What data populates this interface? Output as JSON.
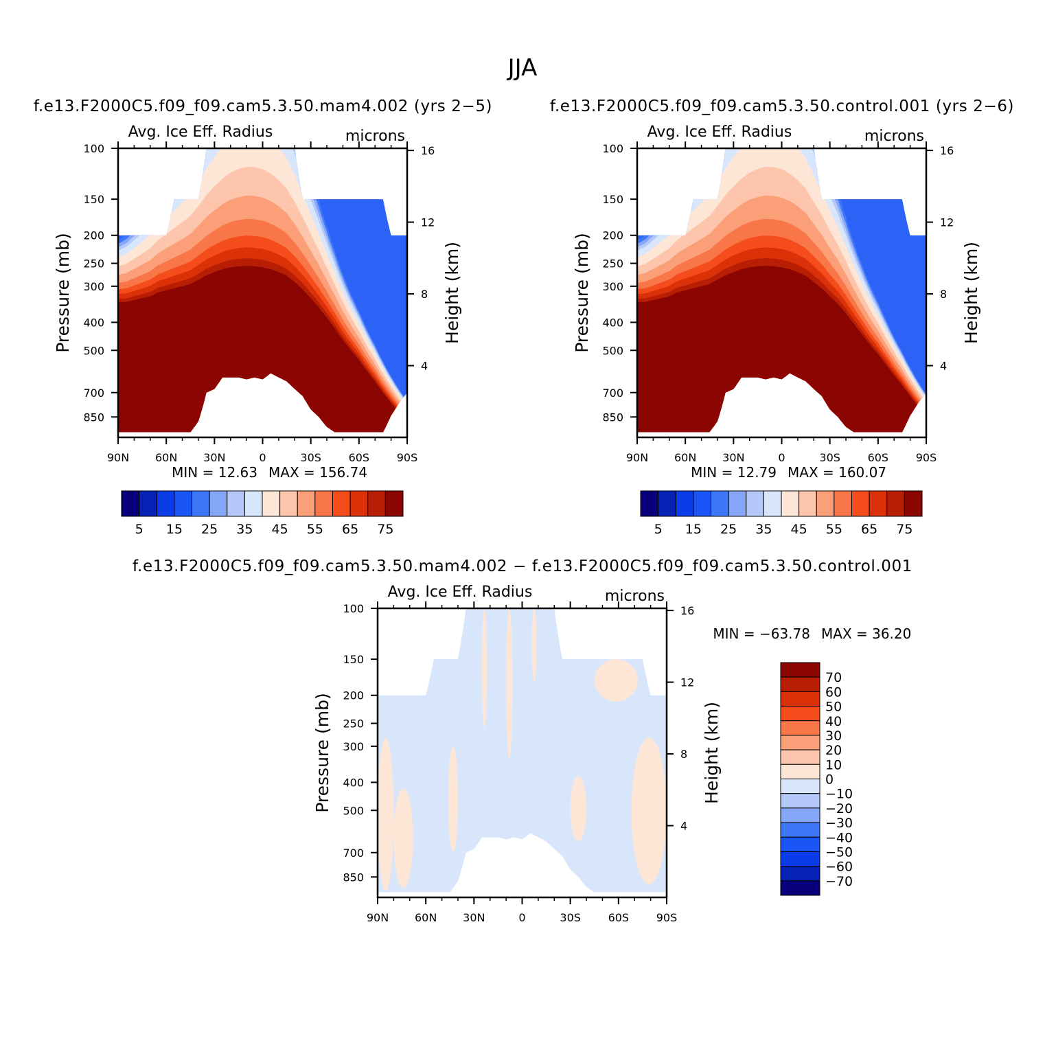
{
  "figure": {
    "season": "JJA"
  },
  "chart_data": [
    {
      "type": "heatmap",
      "id": "case",
      "case_label": "f.e13.F2000C5.f09_f09.cam5.3.50.mam4.002 (yrs 2−5)",
      "title": "Avg. Ice Eff. Radius",
      "units": "microns",
      "ylabel": "Pressure (mb)",
      "ylabel_right": "Height (km)",
      "x_ticks": [
        "90N",
        "60N",
        "30N",
        "0",
        "30S",
        "60S",
        "90S"
      ],
      "y_ticks": [
        "100",
        "150",
        "200",
        "250",
        "300",
        "400",
        "500",
        "700",
        "850"
      ],
      "y_ticks_right": [
        "16",
        "12",
        "8",
        "4"
      ],
      "ylim_mb": [
        100,
        1000
      ],
      "scale": "log-pressure",
      "min_text": "MIN =   12.63",
      "max_text": "MAX =  156.74",
      "min": 12.63,
      "max": 156.74,
      "colorbar": {
        "labels": [
          "5",
          "15",
          "25",
          "35",
          "45",
          "55",
          "65",
          "75"
        ],
        "levels": [
          5,
          10,
          15,
          20,
          25,
          30,
          35,
          40,
          45,
          50,
          55,
          60,
          65,
          70,
          75
        ],
        "colors": [
          "#08007a",
          "#0522b5",
          "#0a3ce8",
          "#1a55f5",
          "#3f77f9",
          "#86a6f8",
          "#b4c9fa",
          "#d8e6fb",
          "#fde6d6",
          "#fdc6ac",
          "#fb9f78",
          "#f97648",
          "#f44d1b",
          "#da3108",
          "#b81e04",
          "#8b0502"
        ]
      },
      "profile_bounds_mb": {
        "lat": [
          90,
          85,
          80,
          75,
          70,
          65,
          60,
          55,
          50,
          45,
          40,
          35,
          30,
          25,
          20,
          15,
          10,
          5,
          0,
          -5,
          -10,
          -15,
          -20,
          -25,
          -30,
          -35,
          -40,
          -45,
          -50,
          -55,
          -60,
          -65,
          -70,
          -75,
          -80,
          -85,
          -90
        ],
        "top": [
          200,
          200,
          200,
          200,
          200,
          200,
          200,
          150,
          150,
          150,
          150,
          100,
          100,
          100,
          100,
          100,
          100,
          100,
          100,
          100,
          100,
          100,
          100,
          150,
          150,
          150,
          150,
          150,
          150,
          150,
          150,
          150,
          150,
          150,
          200,
          200,
          200
        ],
        "bottom": [
          960,
          960,
          960,
          960,
          960,
          960,
          960,
          960,
          960,
          960,
          880,
          700,
          680,
          620,
          620,
          620,
          630,
          620,
          630,
          600,
          620,
          640,
          680,
          720,
          800,
          850,
          920,
          960,
          960,
          960,
          960,
          960,
          960,
          960,
          840,
          760,
          700
        ],
        "core_top": [
          340,
          340,
          335,
          330,
          325,
          315,
          310,
          305,
          300,
          295,
          285,
          275,
          268,
          262,
          258,
          256,
          255,
          256,
          258,
          262,
          268,
          276,
          290,
          308,
          330,
          355,
          385,
          420,
          460,
          500,
          540,
          590,
          640,
          700,
          760,
          820,
          880
        ]
      },
      "color_bands_mb_above_core": [
        {
          "offset_mb": 15,
          "color": "#b81e04"
        },
        {
          "offset_mb": 35,
          "color": "#da3108"
        },
        {
          "offset_mb": 55,
          "color": "#f44d1b"
        },
        {
          "offset_mb": 80,
          "color": "#f97648"
        },
        {
          "offset_mb": 110,
          "color": "#fb9f78"
        },
        {
          "offset_mb": 140,
          "color": "#fdc6ac"
        },
        {
          "offset_mb": 170,
          "color": "#fde6d6"
        },
        {
          "offset_mb": 190,
          "color": "#d8e6fb"
        },
        {
          "offset_mb": 200,
          "color": "#b4c9fa"
        },
        {
          "offset_mb": 210,
          "color": "#86a6f8"
        },
        {
          "offset_mb": 220,
          "color": "#3f77f9"
        }
      ]
    },
    {
      "type": "heatmap",
      "id": "control",
      "case_label": "f.e13.F2000C5.f09_f09.cam5.3.50.control.001 (yrs 2−6)",
      "title": "Avg. Ice Eff. Radius",
      "units": "microns",
      "ylabel": "Pressure (mb)",
      "ylabel_right": "Height (km)",
      "x_ticks": [
        "90N",
        "60N",
        "30N",
        "0",
        "30S",
        "60S",
        "90S"
      ],
      "y_ticks": [
        "100",
        "150",
        "200",
        "250",
        "300",
        "400",
        "500",
        "700",
        "850"
      ],
      "y_ticks_right": [
        "16",
        "12",
        "8",
        "4"
      ],
      "ylim_mb": [
        100,
        1000
      ],
      "scale": "log-pressure",
      "min_text": "MIN =   12.79",
      "max_text": "MAX =  160.07",
      "min": 12.79,
      "max": 160.07,
      "colorbar": {
        "labels": [
          "5",
          "15",
          "25",
          "35",
          "45",
          "55",
          "65",
          "75"
        ],
        "levels": [
          5,
          10,
          15,
          20,
          25,
          30,
          35,
          40,
          45,
          50,
          55,
          60,
          65,
          70,
          75
        ],
        "colors": [
          "#08007a",
          "#0522b5",
          "#0a3ce8",
          "#1a55f5",
          "#3f77f9",
          "#86a6f8",
          "#b4c9fa",
          "#d8e6fb",
          "#fde6d6",
          "#fdc6ac",
          "#fb9f78",
          "#f97648",
          "#f44d1b",
          "#da3108",
          "#b81e04",
          "#8b0502"
        ]
      },
      "profile_bounds_mb": {
        "lat": [
          90,
          85,
          80,
          75,
          70,
          65,
          60,
          55,
          50,
          45,
          40,
          35,
          30,
          25,
          20,
          15,
          10,
          5,
          0,
          -5,
          -10,
          -15,
          -20,
          -25,
          -30,
          -35,
          -40,
          -45,
          -50,
          -55,
          -60,
          -65,
          -70,
          -75,
          -80,
          -85,
          -90
        ],
        "top": [
          200,
          200,
          200,
          200,
          200,
          200,
          200,
          150,
          150,
          150,
          150,
          100,
          100,
          100,
          100,
          100,
          100,
          100,
          100,
          100,
          100,
          100,
          100,
          150,
          150,
          150,
          150,
          150,
          150,
          150,
          150,
          150,
          150,
          150,
          200,
          200,
          200
        ],
        "bottom": [
          960,
          960,
          960,
          960,
          960,
          960,
          960,
          960,
          960,
          960,
          880,
          700,
          680,
          620,
          620,
          620,
          630,
          620,
          630,
          600,
          620,
          640,
          680,
          720,
          800,
          850,
          920,
          960,
          960,
          960,
          960,
          960,
          960,
          960,
          840,
          760,
          700
        ],
        "core_top": [
          340,
          340,
          335,
          330,
          325,
          315,
          310,
          305,
          300,
          295,
          285,
          275,
          268,
          262,
          258,
          256,
          255,
          256,
          258,
          262,
          268,
          276,
          290,
          305,
          325,
          345,
          372,
          405,
          440,
          478,
          515,
          560,
          610,
          660,
          720,
          780,
          840
        ]
      },
      "color_bands_mb_above_core": [
        {
          "offset_mb": 15,
          "color": "#b81e04"
        },
        {
          "offset_mb": 35,
          "color": "#da3108"
        },
        {
          "offset_mb": 55,
          "color": "#f44d1b"
        },
        {
          "offset_mb": 80,
          "color": "#f97648"
        },
        {
          "offset_mb": 110,
          "color": "#fb9f78"
        },
        {
          "offset_mb": 140,
          "color": "#fdc6ac"
        },
        {
          "offset_mb": 170,
          "color": "#fde6d6"
        },
        {
          "offset_mb": 190,
          "color": "#d8e6fb"
        },
        {
          "offset_mb": 200,
          "color": "#b4c9fa"
        },
        {
          "offset_mb": 210,
          "color": "#86a6f8"
        },
        {
          "offset_mb": 220,
          "color": "#3f77f9"
        }
      ]
    },
    {
      "type": "heatmap",
      "id": "difference",
      "case_label": "f.e13.F2000C5.f09_f09.cam5.3.50.mam4.002 − f.e13.F2000C5.f09_f09.cam5.3.50.control.001",
      "title": "Avg. Ice Eff. Radius",
      "units": "microns",
      "ylabel": "Pressure (mb)",
      "ylabel_right": "Height (km)",
      "x_ticks": [
        "90N",
        "60N",
        "30N",
        "0",
        "30S",
        "60S",
        "90S"
      ],
      "y_ticks": [
        "100",
        "150",
        "200",
        "250",
        "300",
        "400",
        "500",
        "700",
        "850"
      ],
      "y_ticks_right": [
        "16",
        "12",
        "8",
        "4"
      ],
      "ylim_mb": [
        100,
        1000
      ],
      "scale": "log-pressure",
      "min_text": "MIN = −63.78",
      "max_text": "MAX =   36.20",
      "min": -63.78,
      "max": 36.2,
      "colorbar": {
        "labels": [
          "70",
          "60",
          "50",
          "40",
          "30",
          "20",
          "10",
          "0",
          "−10",
          "−20",
          "−30",
          "−40",
          "−50",
          "−60",
          "−70"
        ],
        "levels": [
          70,
          60,
          50,
          40,
          30,
          20,
          10,
          0,
          -10,
          -20,
          -30,
          -40,
          -50,
          -60,
          -70
        ],
        "colors": [
          "#8b0502",
          "#b81e04",
          "#da3108",
          "#f44d1b",
          "#f97648",
          "#fb9f78",
          "#fdc6ac",
          "#fde6d6",
          "#d8e6fb",
          "#b4c9fa",
          "#86a6f8",
          "#3f77f9",
          "#1a55f5",
          "#0a3ce8",
          "#0522b5",
          "#08007a"
        ]
      },
      "profile_bounds_mb": {
        "lat": [
          90,
          85,
          80,
          75,
          70,
          65,
          60,
          55,
          50,
          45,
          40,
          35,
          30,
          25,
          20,
          15,
          10,
          5,
          0,
          -5,
          -10,
          -15,
          -20,
          -25,
          -30,
          -35,
          -40,
          -45,
          -50,
          -55,
          -60,
          -65,
          -70,
          -75,
          -80,
          -85,
          -90
        ],
        "top": [
          200,
          200,
          200,
          200,
          200,
          200,
          200,
          150,
          150,
          150,
          150,
          100,
          100,
          100,
          100,
          100,
          100,
          100,
          100,
          100,
          100,
          100,
          100,
          150,
          150,
          150,
          150,
          150,
          150,
          150,
          150,
          150,
          150,
          150,
          200,
          200,
          200
        ],
        "bottom": [
          960,
          960,
          960,
          960,
          960,
          960,
          960,
          960,
          960,
          960,
          880,
          700,
          680,
          620,
          620,
          620,
          630,
          620,
          630,
          600,
          620,
          640,
          680,
          720,
          800,
          850,
          920,
          960,
          960,
          960,
          960,
          960,
          960,
          960,
          960,
          960,
          960
        ]
      },
      "positive_patches": [
        {
          "lat_range": [
            90,
            80
          ],
          "mb_range": [
            280,
            950
          ]
        },
        {
          "lat_range": [
            80,
            68
          ],
          "mb_range": [
            420,
            930
          ]
        },
        {
          "lat_range": [
            46,
            40
          ],
          "mb_range": [
            300,
            700
          ]
        },
        {
          "lat_range": [
            25,
            22
          ],
          "mb_range": [
            100,
            260
          ]
        },
        {
          "lat_range": [
            10,
            6
          ],
          "mb_range": [
            100,
            330
          ]
        },
        {
          "lat_range": [
            -6,
            -9
          ],
          "mb_range": [
            100,
            180
          ]
        },
        {
          "lat_range": [
            -30,
            -40
          ],
          "mb_range": [
            380,
            640
          ]
        },
        {
          "lat_range": [
            -45,
            -72
          ],
          "mb_range": [
            150,
            210
          ]
        },
        {
          "lat_range": [
            -68,
            -90
          ],
          "mb_range": [
            280,
            900
          ]
        }
      ]
    }
  ]
}
